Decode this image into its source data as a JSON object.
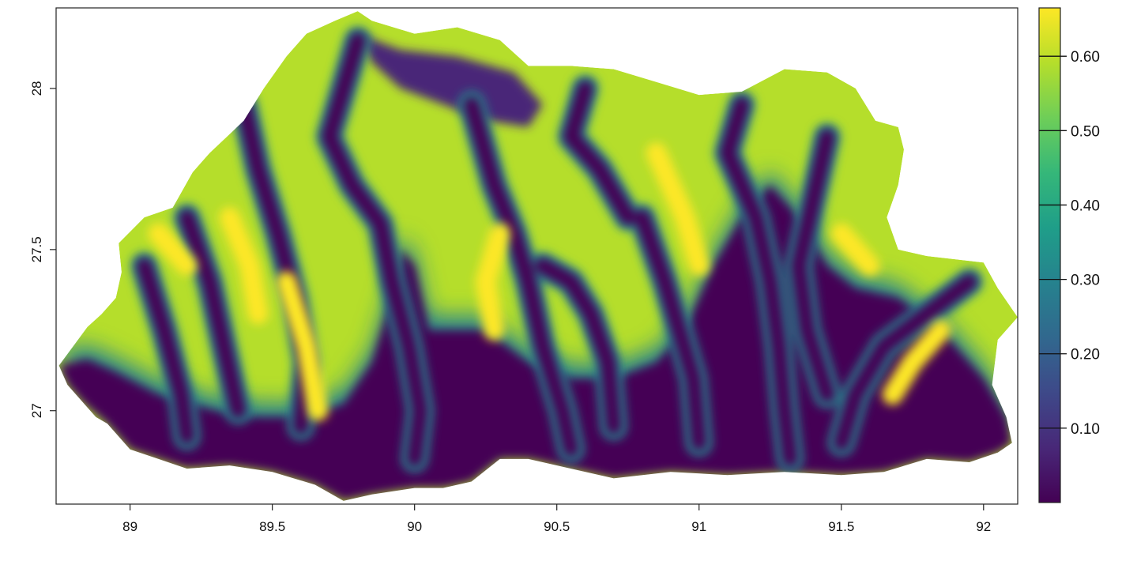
{
  "chart_data": {
    "type": "heatmap",
    "title": "",
    "xlabel": "",
    "ylabel": "",
    "xlim": [
      88.74,
      92.12
    ],
    "ylim": [
      26.71,
      28.25
    ],
    "x_ticks": [
      {
        "value": 89,
        "label": "89"
      },
      {
        "value": 89.5,
        "label": "89.5"
      },
      {
        "value": 90,
        "label": "90"
      },
      {
        "value": 90.5,
        "label": "90.5"
      },
      {
        "value": 91,
        "label": "91"
      },
      {
        "value": 91.5,
        "label": "91.5"
      },
      {
        "value": 92,
        "label": "92"
      }
    ],
    "y_ticks": [
      {
        "value": 27,
        "label": "27"
      },
      {
        "value": 27.5,
        "label": "27.5"
      },
      {
        "value": 28,
        "label": "28"
      }
    ],
    "colorbar": {
      "range": [
        0.0,
        0.665
      ],
      "ticks": [
        {
          "value": 0.1,
          "label": "0.10"
        },
        {
          "value": 0.2,
          "label": "0.20"
        },
        {
          "value": 0.3,
          "label": "0.30"
        },
        {
          "value": 0.4,
          "label": "0.40"
        },
        {
          "value": 0.5,
          "label": "0.50"
        },
        {
          "value": 0.6,
          "label": "0.60"
        }
      ],
      "colormap": [
        "#440154",
        "#482878",
        "#3e4989",
        "#31688e",
        "#26828e",
        "#1f9e89",
        "#35b779",
        "#6ece58",
        "#b5de2b",
        "#fde725"
      ]
    },
    "region_outline_lonlat": [
      [
        88.75,
        27.14
      ],
      [
        88.8,
        27.2
      ],
      [
        88.85,
        27.26
      ],
      [
        88.9,
        27.3
      ],
      [
        88.95,
        27.35
      ],
      [
        88.97,
        27.43
      ],
      [
        88.96,
        27.52
      ],
      [
        89.05,
        27.6
      ],
      [
        89.15,
        27.63
      ],
      [
        89.22,
        27.74
      ],
      [
        89.28,
        27.8
      ],
      [
        89.4,
        27.9
      ],
      [
        89.47,
        28.0
      ],
      [
        89.55,
        28.1
      ],
      [
        89.62,
        28.17
      ],
      [
        89.72,
        28.21
      ],
      [
        89.8,
        28.24
      ],
      [
        89.85,
        28.21
      ],
      [
        90.0,
        28.17
      ],
      [
        90.15,
        28.19
      ],
      [
        90.3,
        28.15
      ],
      [
        90.4,
        28.07
      ],
      [
        90.55,
        28.07
      ],
      [
        90.7,
        28.06
      ],
      [
        90.85,
        28.02
      ],
      [
        91.0,
        27.98
      ],
      [
        91.15,
        27.99
      ],
      [
        91.3,
        28.06
      ],
      [
        91.45,
        28.05
      ],
      [
        91.55,
        28.0
      ],
      [
        91.62,
        27.9
      ],
      [
        91.7,
        27.88
      ],
      [
        91.72,
        27.81
      ],
      [
        91.7,
        27.7
      ],
      [
        91.66,
        27.6
      ],
      [
        91.7,
        27.5
      ],
      [
        91.8,
        27.48
      ],
      [
        91.9,
        27.47
      ],
      [
        92.0,
        27.46
      ],
      [
        92.05,
        27.38
      ],
      [
        92.12,
        27.29
      ],
      [
        92.05,
        27.22
      ],
      [
        92.03,
        27.08
      ],
      [
        92.08,
        26.98
      ],
      [
        92.1,
        26.9
      ],
      [
        92.05,
        26.87
      ],
      [
        91.95,
        26.84
      ],
      [
        91.8,
        26.85
      ],
      [
        91.65,
        26.81
      ],
      [
        91.5,
        26.8
      ],
      [
        91.3,
        26.81
      ],
      [
        91.1,
        26.8
      ],
      [
        90.9,
        26.81
      ],
      [
        90.7,
        26.79
      ],
      [
        90.55,
        26.82
      ],
      [
        90.4,
        26.85
      ],
      [
        90.3,
        26.85
      ],
      [
        90.2,
        26.78
      ],
      [
        90.1,
        26.76
      ],
      [
        90.0,
        26.76
      ],
      [
        89.85,
        26.74
      ],
      [
        89.75,
        26.72
      ],
      [
        89.65,
        26.77
      ],
      [
        89.5,
        26.81
      ],
      [
        89.35,
        26.83
      ],
      [
        89.2,
        26.82
      ],
      [
        89.1,
        26.85
      ],
      [
        89.0,
        26.88
      ],
      [
        88.92,
        26.96
      ],
      [
        88.88,
        26.98
      ],
      [
        88.84,
        27.02
      ],
      [
        88.78,
        27.08
      ],
      [
        88.75,
        27.14
      ]
    ],
    "lowland_zone_lonlat": [
      [
        88.75,
        27.14
      ],
      [
        88.85,
        27.16
      ],
      [
        88.95,
        27.12
      ],
      [
        89.1,
        27.05
      ],
      [
        89.3,
        27.0
      ],
      [
        89.45,
        26.98
      ],
      [
        89.6,
        26.98
      ],
      [
        89.75,
        27.02
      ],
      [
        89.85,
        27.15
      ],
      [
        89.92,
        27.35
      ],
      [
        89.95,
        27.5
      ],
      [
        90.0,
        27.45
      ],
      [
        90.05,
        27.25
      ],
      [
        90.25,
        27.25
      ],
      [
        90.4,
        27.15
      ],
      [
        90.55,
        27.1
      ],
      [
        90.7,
        27.1
      ],
      [
        90.85,
        27.15
      ],
      [
        90.95,
        27.25
      ],
      [
        91.05,
        27.45
      ],
      [
        91.15,
        27.6
      ],
      [
        91.25,
        27.7
      ],
      [
        91.35,
        27.6
      ],
      [
        91.45,
        27.45
      ],
      [
        91.55,
        27.38
      ],
      [
        91.7,
        27.35
      ],
      [
        91.85,
        27.25
      ],
      [
        92.0,
        27.1
      ],
      [
        92.08,
        26.98
      ],
      [
        92.1,
        26.9
      ],
      [
        92.05,
        26.87
      ],
      [
        91.95,
        26.84
      ],
      [
        91.8,
        26.85
      ],
      [
        91.65,
        26.81
      ],
      [
        91.5,
        26.8
      ],
      [
        91.3,
        26.81
      ],
      [
        91.1,
        26.8
      ],
      [
        90.9,
        26.81
      ],
      [
        90.7,
        26.79
      ],
      [
        90.55,
        26.82
      ],
      [
        90.4,
        26.85
      ],
      [
        90.3,
        26.85
      ],
      [
        90.2,
        26.78
      ],
      [
        90.1,
        26.76
      ],
      [
        90.0,
        26.76
      ],
      [
        89.85,
        26.74
      ],
      [
        89.75,
        26.72
      ],
      [
        89.65,
        26.77
      ],
      [
        89.5,
        26.81
      ],
      [
        89.35,
        26.83
      ],
      [
        89.2,
        26.82
      ],
      [
        89.1,
        26.85
      ],
      [
        89.0,
        26.88
      ],
      [
        88.92,
        26.96
      ],
      [
        88.84,
        27.02
      ],
      [
        88.78,
        27.08
      ],
      [
        88.75,
        27.14
      ]
    ],
    "high_plateau_lonlat": [
      [
        89.8,
        28.17
      ],
      [
        89.95,
        28.12
      ],
      [
        90.15,
        28.1
      ],
      [
        90.35,
        28.05
      ],
      [
        90.45,
        27.95
      ],
      [
        90.4,
        27.88
      ],
      [
        90.25,
        27.9
      ],
      [
        90.1,
        27.95
      ],
      [
        89.95,
        28.0
      ],
      [
        89.85,
        28.08
      ]
    ],
    "valleys_lonlat": [
      [
        [
          89.8,
          28.15
        ],
        [
          89.75,
          28.0
        ],
        [
          89.7,
          27.85
        ],
        [
          89.78,
          27.7
        ],
        [
          89.88,
          27.58
        ],
        [
          89.92,
          27.4
        ],
        [
          89.98,
          27.2
        ],
        [
          90.02,
          27.0
        ],
        [
          90.0,
          26.85
        ]
      ],
      [
        [
          90.2,
          27.95
        ],
        [
          90.28,
          27.7
        ],
        [
          90.35,
          27.55
        ],
        [
          90.4,
          27.4
        ],
        [
          90.45,
          27.2
        ],
        [
          90.52,
          27.0
        ],
        [
          90.55,
          26.88
        ]
      ],
      [
        [
          89.4,
          27.95
        ],
        [
          89.45,
          27.75
        ],
        [
          89.52,
          27.55
        ],
        [
          89.58,
          27.35
        ],
        [
          89.62,
          27.15
        ],
        [
          89.6,
          26.95
        ]
      ],
      [
        [
          90.45,
          27.45
        ],
        [
          90.55,
          27.4
        ],
        [
          90.62,
          27.3
        ],
        [
          90.68,
          27.15
        ],
        [
          90.7,
          26.95
        ]
      ],
      [
        [
          90.8,
          27.6
        ],
        [
          90.88,
          27.4
        ],
        [
          90.93,
          27.25
        ],
        [
          90.98,
          27.1
        ],
        [
          91.0,
          26.9
        ]
      ],
      [
        [
          91.15,
          27.95
        ],
        [
          91.1,
          27.8
        ],
        [
          91.2,
          27.6
        ],
        [
          91.25,
          27.4
        ],
        [
          91.28,
          27.2
        ],
        [
          91.3,
          27.0
        ],
        [
          91.32,
          26.85
        ]
      ],
      [
        [
          91.45,
          27.85
        ],
        [
          91.4,
          27.65
        ],
        [
          91.35,
          27.45
        ],
        [
          91.38,
          27.25
        ],
        [
          91.45,
          27.05
        ]
      ],
      [
        [
          91.95,
          27.4
        ],
        [
          91.8,
          27.3
        ],
        [
          91.65,
          27.2
        ],
        [
          91.55,
          27.05
        ],
        [
          91.5,
          26.9
        ]
      ],
      [
        [
          89.2,
          27.6
        ],
        [
          89.28,
          27.4
        ],
        [
          89.33,
          27.2
        ],
        [
          89.38,
          27.0
        ]
      ],
      [
        [
          89.05,
          27.45
        ],
        [
          89.12,
          27.25
        ],
        [
          89.18,
          27.05
        ],
        [
          89.2,
          26.92
        ]
      ],
      [
        [
          90.6,
          28.0
        ],
        [
          90.55,
          27.85
        ],
        [
          90.65,
          27.75
        ],
        [
          90.75,
          27.6
        ]
      ]
    ],
    "ridges_lonlat": [
      [
        [
          89.55,
          27.4
        ],
        [
          89.62,
          27.2
        ],
        [
          89.66,
          27.0
        ]
      ],
      [
        [
          89.35,
          27.6
        ],
        [
          89.42,
          27.45
        ],
        [
          89.45,
          27.3
        ]
      ],
      [
        [
          90.3,
          27.55
        ],
        [
          90.25,
          27.4
        ],
        [
          90.28,
          27.25
        ]
      ],
      [
        [
          90.85,
          27.8
        ],
        [
          90.95,
          27.6
        ],
        [
          91.0,
          27.45
        ]
      ],
      [
        [
          91.5,
          27.55
        ],
        [
          91.6,
          27.45
        ]
      ],
      [
        [
          91.85,
          27.25
        ],
        [
          91.75,
          27.15
        ],
        [
          91.68,
          27.05
        ]
      ],
      [
        [
          89.1,
          27.55
        ],
        [
          89.2,
          27.45
        ]
      ]
    ]
  }
}
